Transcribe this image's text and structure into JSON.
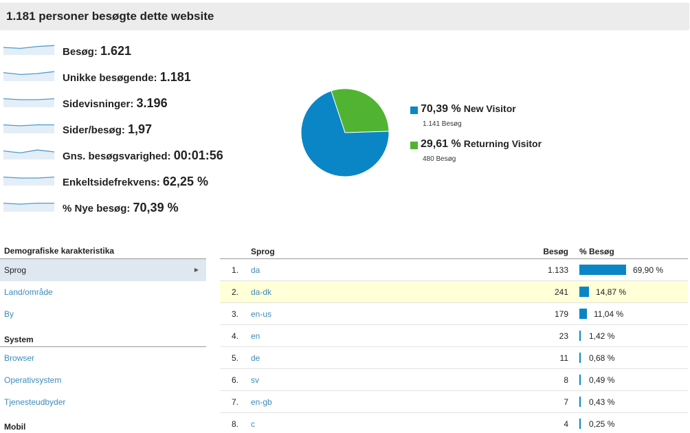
{
  "header": {
    "title": "1.181 personer besøgte dette website"
  },
  "metrics": [
    {
      "label": "Besøg:",
      "value": "1.621",
      "spark": [
        5,
        4,
        6,
        7
      ]
    },
    {
      "label": "Unikke besøgende:",
      "value": "1.181",
      "spark": [
        6,
        4,
        5,
        7
      ]
    },
    {
      "label": "Sidevisninger:",
      "value": "3.196",
      "spark": [
        6,
        5,
        5,
        6
      ]
    },
    {
      "label": "Sider/besøg:",
      "value": "1,97",
      "spark": [
        6,
        5,
        6,
        6
      ]
    },
    {
      "label": "Gns. besøgsvarighed:",
      "value": "00:01:56",
      "spark": [
        6,
        4,
        7,
        5
      ]
    },
    {
      "label": "Enkeltsidefrekvens:",
      "value": "62,25 %",
      "spark": [
        6,
        5,
        5,
        6
      ]
    },
    {
      "label": "% Nye besøg:",
      "value": "70,39 %",
      "spark": [
        6,
        5,
        6,
        6
      ]
    }
  ],
  "pie": {
    "slices": [
      {
        "pct": "70,39 %",
        "name": "New Visitor",
        "visits": "1.141 Besøg",
        "value": 70.39,
        "color": "#0a86c6"
      },
      {
        "pct": "29,61 %",
        "name": "Returning Visitor",
        "visits": "480 Besøg",
        "value": 29.61,
        "color": "#50b432"
      }
    ]
  },
  "nav": {
    "demographics_head": "Demografiske karakteristika",
    "system_head": "System",
    "mobile_head": "Mobil",
    "items": [
      {
        "label": "Sprog",
        "active": true
      },
      {
        "label": "Land/område",
        "active": false
      },
      {
        "label": "By",
        "active": false
      },
      {
        "label": "Browser",
        "active": false
      },
      {
        "label": "Operativsystem",
        "active": false
      },
      {
        "label": "Tjenesteudbyder",
        "active": false
      }
    ]
  },
  "table": {
    "col_language": "Sprog",
    "col_visits": "Besøg",
    "col_pct": "% Besøg",
    "rows": [
      {
        "num": "1.",
        "lang": "da",
        "visits": "1.133",
        "pct": "69,90 %",
        "pct_value": 69.9,
        "highlight": false
      },
      {
        "num": "2.",
        "lang": "da-dk",
        "visits": "241",
        "pct": "14,87 %",
        "pct_value": 14.87,
        "highlight": true
      },
      {
        "num": "3.",
        "lang": "en-us",
        "visits": "179",
        "pct": "11,04 %",
        "pct_value": 11.04,
        "highlight": false
      },
      {
        "num": "4.",
        "lang": "en",
        "visits": "23",
        "pct": "1,42 %",
        "pct_value": 1.42,
        "highlight": false
      },
      {
        "num": "5.",
        "lang": "de",
        "visits": "11",
        "pct": "0,68 %",
        "pct_value": 0.68,
        "highlight": false
      },
      {
        "num": "6.",
        "lang": "sv",
        "visits": "8",
        "pct": "0,49 %",
        "pct_value": 0.49,
        "highlight": false
      },
      {
        "num": "7.",
        "lang": "en-gb",
        "visits": "7",
        "pct": "0,43 %",
        "pct_value": 0.43,
        "highlight": false
      },
      {
        "num": "8.",
        "lang": "c",
        "visits": "4",
        "pct": "0,25 %",
        "pct_value": 0.25,
        "highlight": false
      }
    ]
  }
}
